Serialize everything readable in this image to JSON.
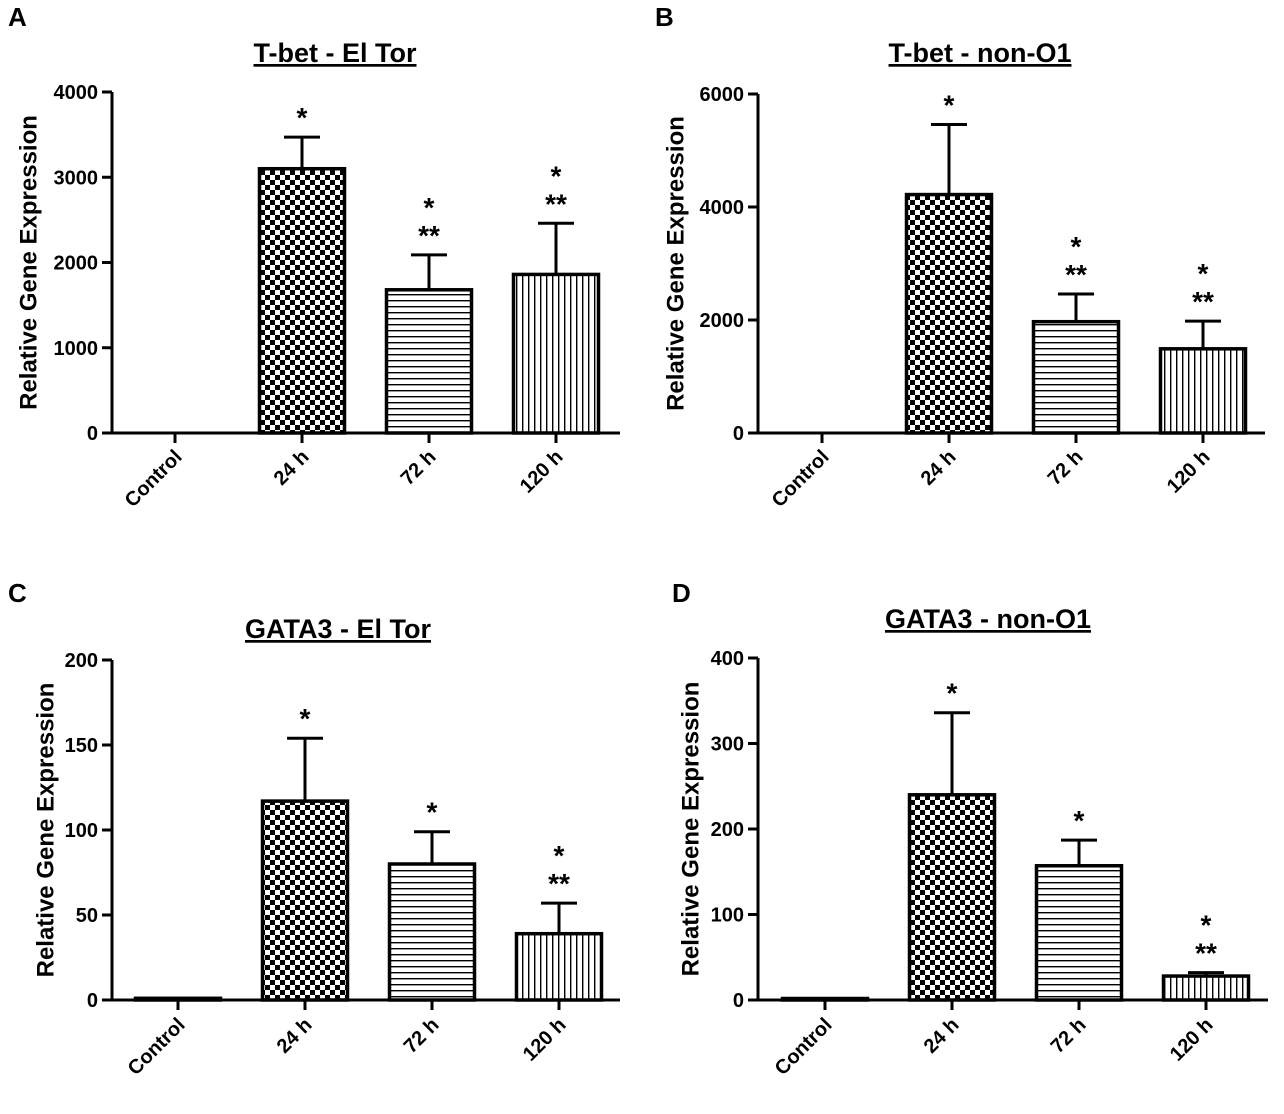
{
  "figure": {
    "panel_letters": [
      "A",
      "B",
      "C",
      "D"
    ]
  },
  "chart_data": [
    {
      "panel": "A",
      "type": "bar",
      "title": "T-bet - El Tor",
      "ylabel": "Relative Gene Expression",
      "xlabel": "",
      "categories": [
        "Control",
        "24 h",
        "72 h",
        "120 h"
      ],
      "values": [
        0,
        3100,
        1680,
        1860
      ],
      "errors": [
        0,
        370,
        410,
        600
      ],
      "ylim": [
        0,
        4000
      ],
      "yticks": [
        0,
        1000,
        2000,
        3000,
        4000
      ],
      "patterns": [
        "none",
        "checker",
        "hlines",
        "vlines"
      ],
      "annotations": [
        [],
        [
          "*"
        ],
        [
          "*",
          "**"
        ],
        [
          "*",
          "**"
        ]
      ]
    },
    {
      "panel": "B",
      "type": "bar",
      "title": "T-bet - non-O1",
      "ylabel": "Relative Gene Expression",
      "xlabel": "",
      "categories": [
        "Control",
        "24 h",
        "72 h",
        "120 h"
      ],
      "values": [
        0,
        4220,
        1970,
        1490
      ],
      "errors": [
        0,
        1240,
        490,
        490
      ],
      "ylim": [
        0,
        6000
      ],
      "yticks": [
        0,
        2000,
        4000,
        6000
      ],
      "patterns": [
        "none",
        "checker",
        "hlines",
        "vlines"
      ],
      "annotations": [
        [],
        [
          "*"
        ],
        [
          "*",
          "**"
        ],
        [
          "*",
          "**"
        ]
      ]
    },
    {
      "panel": "C",
      "type": "bar",
      "title": "GATA3 - El Tor",
      "ylabel": "Relative Gene Expression",
      "xlabel": "",
      "categories": [
        "Control",
        "24 h",
        "72 h",
        "120 h"
      ],
      "values": [
        1,
        117,
        80,
        39
      ],
      "errors": [
        0,
        37,
        19,
        18
      ],
      "ylim": [
        0,
        200
      ],
      "yticks": [
        0,
        50,
        100,
        150,
        200
      ],
      "patterns": [
        "none",
        "checker",
        "hlines",
        "vlines"
      ],
      "annotations": [
        [],
        [
          "*"
        ],
        [
          "*"
        ],
        [
          "*",
          "**"
        ]
      ]
    },
    {
      "panel": "D",
      "type": "bar",
      "title": "GATA3 - non-O1",
      "ylabel": "Relative Gene Expression",
      "xlabel": "",
      "categories": [
        "Control",
        "24 h",
        "72 h",
        "120 h"
      ],
      "values": [
        1,
        240,
        157,
        28
      ],
      "errors": [
        0,
        96,
        30,
        4
      ],
      "ylim": [
        0,
        400
      ],
      "yticks": [
        0,
        100,
        200,
        300,
        400
      ],
      "patterns": [
        "none",
        "checker",
        "hlines",
        "vlines"
      ],
      "annotations": [
        [],
        [
          "*"
        ],
        [
          "*"
        ],
        [
          "*",
          "**"
        ]
      ]
    }
  ]
}
